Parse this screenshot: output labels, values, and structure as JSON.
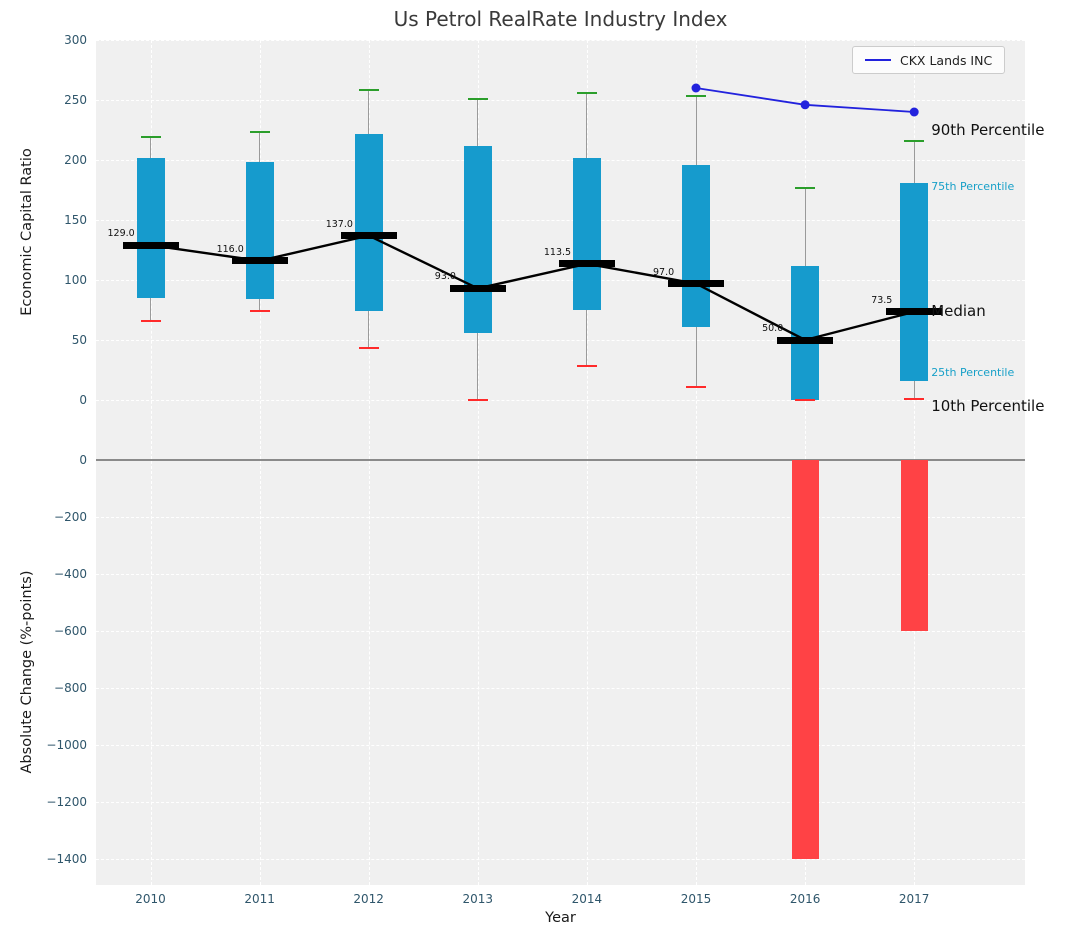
{
  "chart_data": [
    {
      "type": "boxplot",
      "panel": "top",
      "title": "Us Petrol RealRate Industry Index",
      "xlabel": "Year",
      "ylabel": "Economic Capital Ratio",
      "ylim": [
        -47.5,
        300
      ],
      "yticks": [
        300,
        250,
        200,
        150,
        100,
        50,
        0
      ],
      "grid": true,
      "categories": [
        "2010",
        "2011",
        "2012",
        "2013",
        "2014",
        "2015",
        "2016",
        "2017"
      ],
      "boxes": [
        {
          "category": "2010",
          "p10": 66,
          "p25": 85,
          "median": 129.0,
          "p75": 202,
          "p90": 219
        },
        {
          "category": "2011",
          "p10": 74,
          "p25": 84,
          "median": 116.0,
          "p75": 198,
          "p90": 223
        },
        {
          "category": "2012",
          "p10": 43,
          "p25": 74,
          "median": 137.0,
          "p75": 222,
          "p90": 258
        },
        {
          "category": "2013",
          "p10": 0,
          "p25": 56,
          "median": 93.0,
          "p75": 212,
          "p90": 251
        },
        {
          "category": "2014",
          "p10": 28,
          "p25": 75,
          "median": 113.5,
          "p75": 202,
          "p90": 256
        },
        {
          "category": "2015",
          "p10": 11,
          "p25": 61,
          "median": 97.0,
          "p75": 196,
          "p90": 253
        },
        {
          "category": "2016",
          "p10": 0,
          "p25": 0,
          "median": 50.0,
          "p75": 112,
          "p90": 177
        },
        {
          "category": "2017",
          "p10": 1,
          "p25": 16,
          "median": 73.5,
          "p75": 181,
          "p90": 216
        }
      ],
      "median_line": true,
      "series": [
        {
          "name": "CKX Lands INC",
          "x": [
            "2015",
            "2016",
            "2017"
          ],
          "values": [
            260,
            246,
            240
          ],
          "color": "#2222dd"
        }
      ],
      "legend": {
        "position": "upper right",
        "entries": [
          "CKX Lands INC"
        ]
      },
      "annotations": [
        {
          "text": "90th Percentile",
          "value": 216,
          "color": "#111111",
          "size": 15,
          "dy": -10
        },
        {
          "text": "75th Percentile",
          "value": 181,
          "color": "#18a0c8",
          "size": 11,
          "dy": 4
        },
        {
          "text": "Median",
          "value": 73.5,
          "color": "#111111",
          "size": 15,
          "dy": 0
        },
        {
          "text": "25th Percentile",
          "value": 16,
          "color": "#18a0c8",
          "size": 11,
          "dy": -8
        },
        {
          "text": "10th Percentile",
          "value": 1,
          "color": "#111111",
          "size": 15,
          "dy": 8
        }
      ],
      "colors": {
        "box_fill": "#169bcd",
        "cap_top": "#2b9e2b",
        "cap_bottom": "#ff2a2a",
        "median": "#000000",
        "whisker": "#9a9a9a",
        "plot_bg": "#f0f0f0"
      }
    },
    {
      "type": "bar",
      "panel": "bottom",
      "xlabel": "Year",
      "ylabel": "Absolute Change (%-points)",
      "ylim": [
        -1490,
        10
      ],
      "yticks": [
        0,
        -200,
        -400,
        -600,
        -800,
        -1000,
        -1200,
        -1400
      ],
      "grid": true,
      "categories": [
        "2010",
        "2011",
        "2012",
        "2013",
        "2014",
        "2015",
        "2016",
        "2017"
      ],
      "values": [
        null,
        null,
        null,
        null,
        null,
        null,
        -1400,
        -600
      ],
      "bar_color": "#ff4245"
    }
  ]
}
